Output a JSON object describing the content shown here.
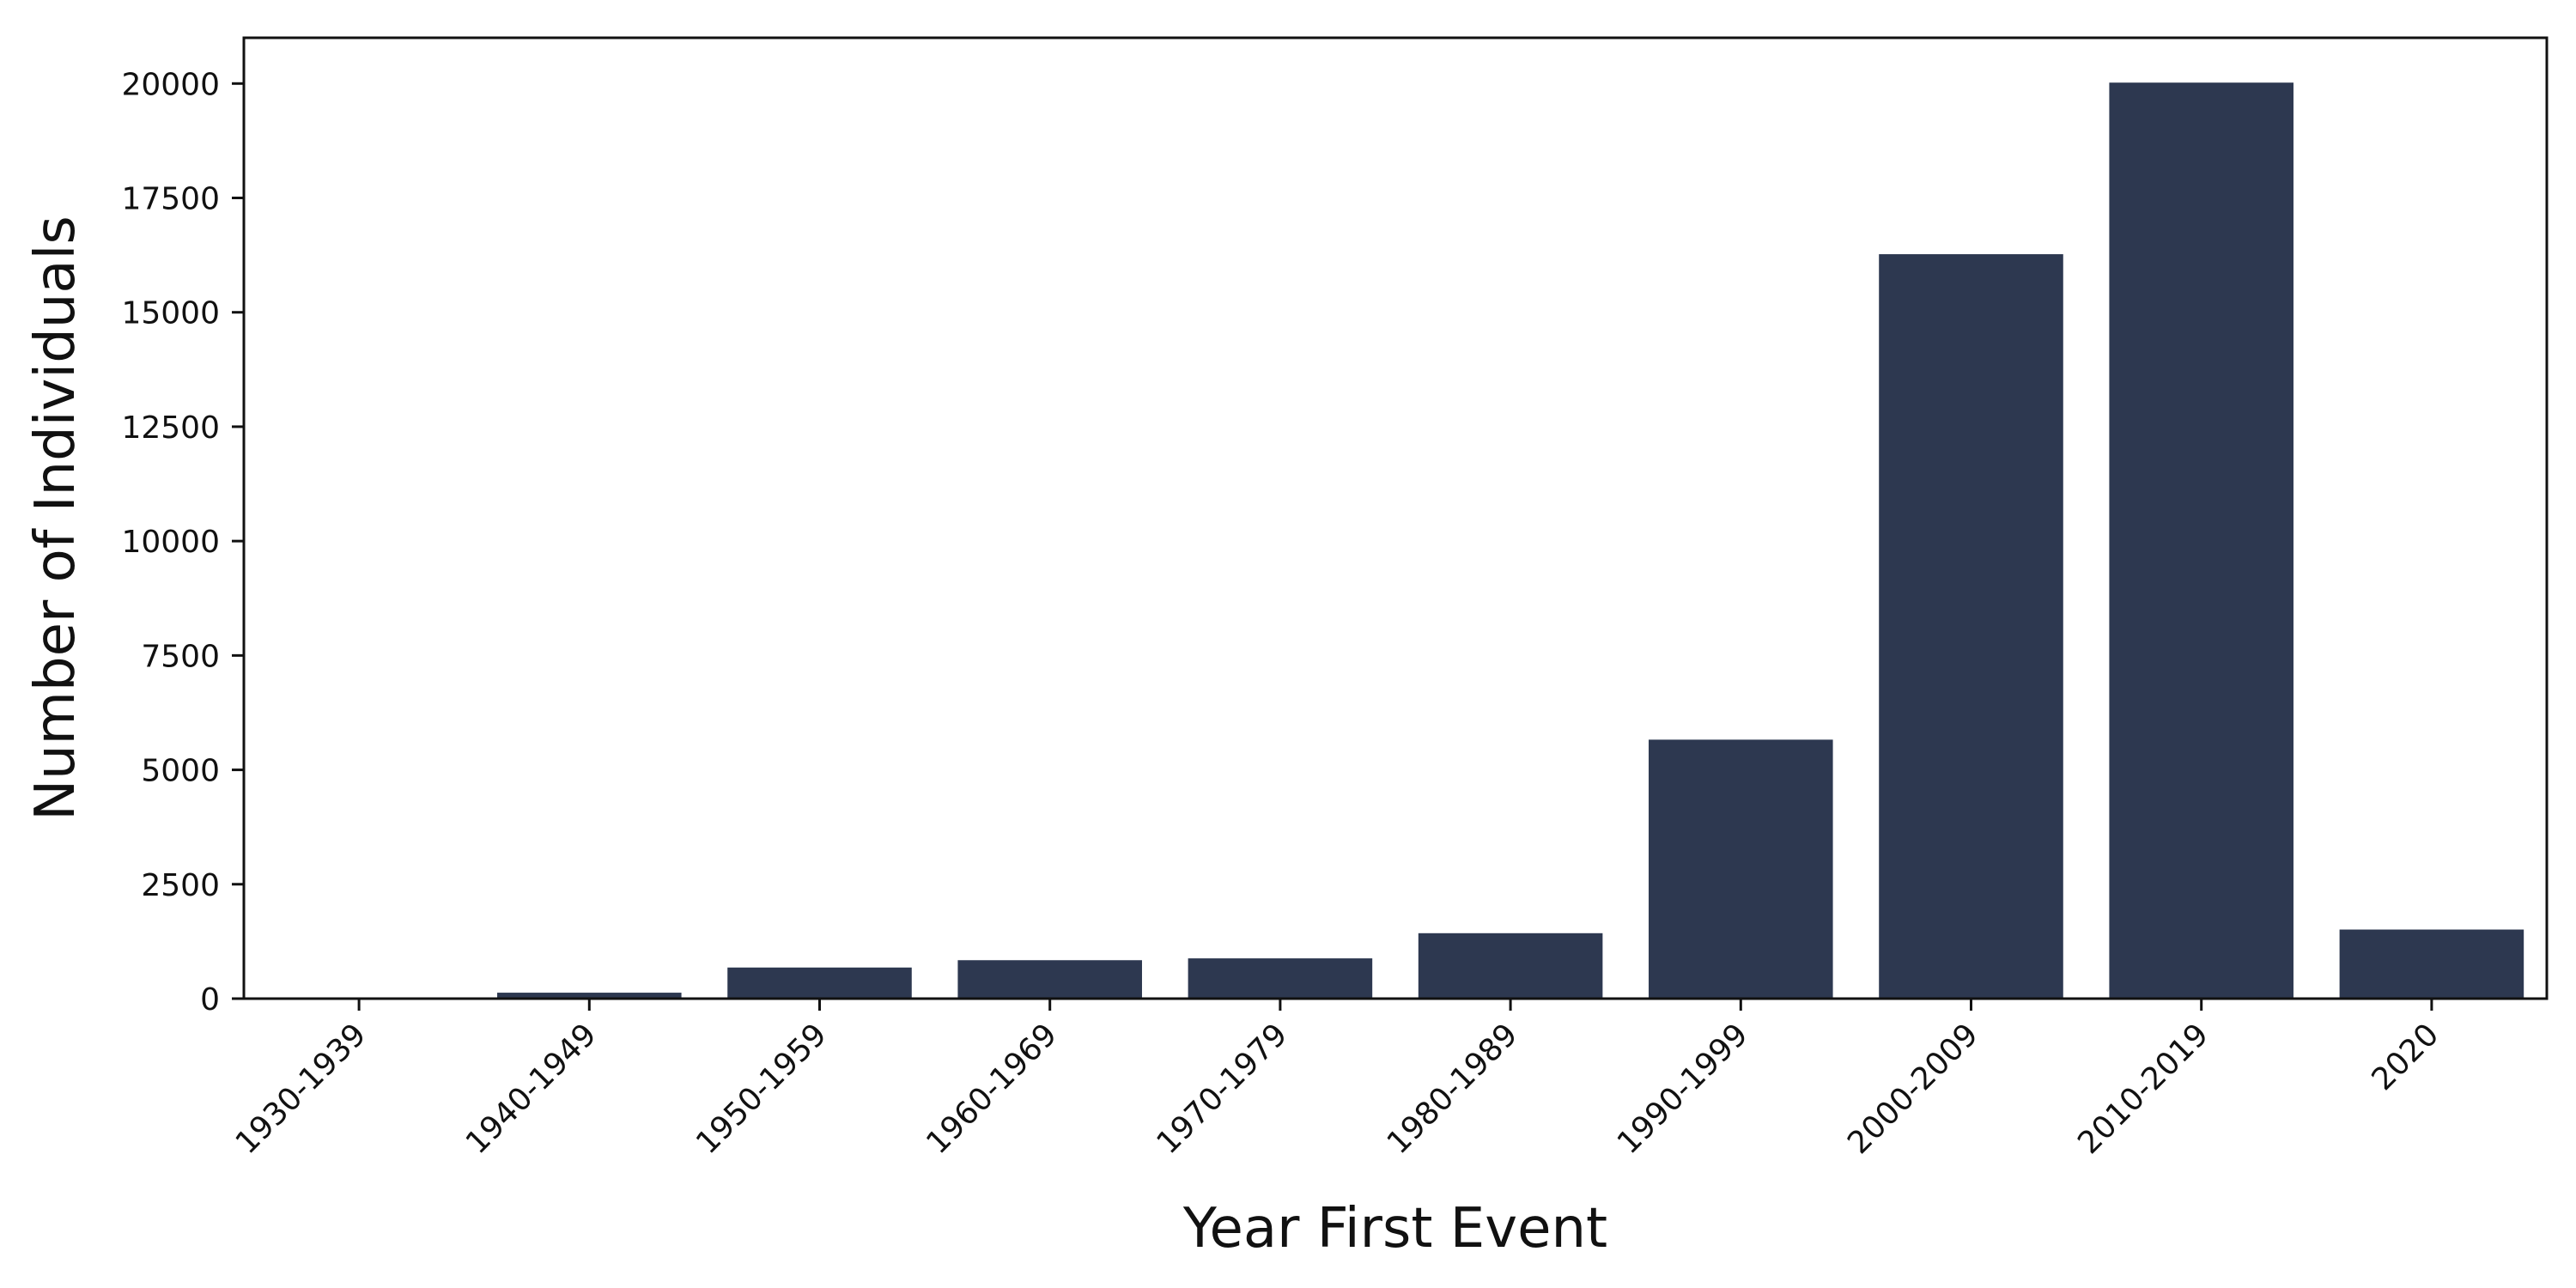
{
  "chart_data": {
    "type": "bar",
    "categories": [
      "1930-1939",
      "1940-1949",
      "1950-1959",
      "1960-1969",
      "1970-1979",
      "1980-1989",
      "1990-1999",
      "2000-2009",
      "2010-2019",
      "2020"
    ],
    "values": [
      10,
      130,
      680,
      840,
      880,
      1430,
      5660,
      16270,
      20020,
      1510
    ],
    "xlabel": "Year First Event",
    "ylabel": "Number of Individuals",
    "ylim": [
      0,
      21000
    ],
    "yticks": [
      0,
      2500,
      5000,
      7500,
      10000,
      12500,
      15000,
      17500,
      20000
    ],
    "bar_color": "#2d3850",
    "grid": false,
    "legend": "none"
  }
}
